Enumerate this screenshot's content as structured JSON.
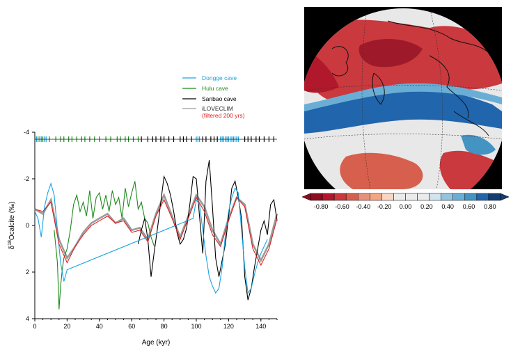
{
  "chart_data": [
    {
      "type": "line",
      "title": "",
      "xlabel": "Age (kyr)",
      "ylabel": "δ18Ocalcite (‰)",
      "ylabel_main": "δ",
      "ylabel_sup": "18",
      "ylabel_rest": "Ocalcite (‰)",
      "xlim": [
        0,
        150
      ],
      "ylim": [
        4,
        -4
      ],
      "y_inverted": true,
      "grid": false,
      "legend_placement": "top-right",
      "x_ticks": [
        "0",
        "20",
        "40",
        "60",
        "80",
        "100",
        "120",
        "140"
      ],
      "y_ticks": [
        "-4",
        "-2",
        "0",
        "2",
        "4"
      ],
      "series": [
        {
          "name": "Dongge cave",
          "color": "#1aa3e0",
          "x": [
            0,
            2,
            4,
            6,
            8,
            10,
            12,
            14,
            16,
            18,
            20,
            98,
            100,
            102,
            104,
            106,
            108,
            110,
            112,
            114,
            116,
            118,
            120,
            122,
            124,
            126,
            128,
            130,
            132,
            134,
            136,
            138,
            140,
            142,
            144
          ],
          "y": [
            -0.6,
            -0.3,
            0.5,
            -0.8,
            -1.4,
            -1.8,
            -1.3,
            0.2,
            1.6,
            2.4,
            1.9,
            -0.3,
            -1.1,
            -0.9,
            0.2,
            1.3,
            2.2,
            2.6,
            2.9,
            2.7,
            1.8,
            0.4,
            -0.6,
            -1.2,
            -1.6,
            -1.4,
            0.2,
            1.8,
            2.9,
            2.7,
            2.1,
            1.6,
            1.2,
            0.9,
            0.6
          ]
        },
        {
          "name": "Hulu cave",
          "color": "#1b8a1b",
          "x": [
            12,
            14,
            15,
            16,
            17,
            18,
            20,
            22,
            24,
            26,
            28,
            30,
            32,
            34,
            36,
            38,
            40,
            42,
            44,
            46,
            48,
            50,
            52,
            54,
            56,
            58,
            60,
            62,
            64,
            66,
            68,
            70,
            72,
            74
          ],
          "y": [
            0.2,
            1.6,
            3.6,
            2.6,
            1.9,
            1.4,
            1.0,
            0.2,
            -0.9,
            -1.3,
            -0.6,
            -1.0,
            -0.4,
            -1.5,
            -0.3,
            -1.2,
            -1.4,
            -0.7,
            -1.3,
            -0.6,
            -1.5,
            -0.9,
            -1.2,
            -0.3,
            -1.6,
            -0.8,
            -1.4,
            -1.9,
            -0.7,
            -1.0,
            -0.3,
            -0.1,
            0.5,
            0.9
          ]
        },
        {
          "name": "Sanbao cave",
          "color": "#000000",
          "x": [
            64,
            66,
            68,
            70,
            72,
            74,
            76,
            78,
            80,
            82,
            84,
            86,
            88,
            90,
            92,
            94,
            96,
            98,
            100,
            102,
            104,
            106,
            108,
            110,
            112,
            114,
            116,
            118,
            120,
            122,
            124,
            126,
            128,
            130,
            132,
            134,
            136,
            138,
            140,
            142,
            144,
            146,
            148,
            150
          ],
          "y": [
            0.8,
            0.2,
            -0.3,
            0.6,
            2.2,
            1.1,
            0.1,
            -1.0,
            -2.1,
            -1.8,
            -1.3,
            -0.6,
            0.3,
            0.8,
            0.6,
            0.1,
            -0.9,
            -2.1,
            -2.0,
            -0.4,
            1.2,
            -1.9,
            -2.8,
            -0.8,
            1.4,
            2.2,
            1.5,
            0.8,
            -0.4,
            -1.6,
            -1.9,
            -1.2,
            -0.3,
            2.2,
            3.2,
            2.7,
            1.8,
            1.0,
            0.2,
            -0.2,
            0.4,
            -0.9,
            -1.1,
            -0.2
          ]
        },
        {
          "name": "iLOVECLIM",
          "name_note": "(filtered 200 yrs)",
          "color": "#9a9a9a",
          "x": [
            0,
            5,
            10,
            15,
            20,
            25,
            30,
            35,
            40,
            45,
            50,
            55,
            60,
            65,
            70,
            75,
            80,
            85,
            90,
            95,
            100,
            105,
            110,
            115,
            120,
            125,
            130,
            135,
            140,
            145,
            150
          ],
          "y": [
            -0.7,
            -0.5,
            -1.1,
            0.6,
            1.4,
            0.9,
            0.3,
            -0.1,
            -0.3,
            -0.5,
            -0.1,
            -0.3,
            0.2,
            0.1,
            0.6,
            -0.5,
            -1.3,
            -0.4,
            0.5,
            -0.4,
            -1.3,
            -0.8,
            0.2,
            0.8,
            -0.3,
            -1.2,
            -0.9,
            0.8,
            1.5,
            0.8,
            -0.5
          ]
        },
        {
          "name": "iLOVECLIM filtered 200 yrs",
          "color": "#e02020",
          "x": [
            0,
            5,
            10,
            15,
            20,
            25,
            30,
            35,
            40,
            45,
            50,
            55,
            60,
            65,
            70,
            75,
            80,
            85,
            90,
            95,
            100,
            105,
            110,
            115,
            120,
            125,
            130,
            135,
            140,
            145,
            150
          ],
          "y": [
            -0.7,
            -0.6,
            -1.0,
            0.8,
            1.6,
            0.9,
            0.4,
            0.0,
            -0.2,
            -0.4,
            -0.1,
            -0.2,
            0.3,
            0.2,
            0.7,
            -0.4,
            -1.1,
            -0.3,
            0.6,
            -0.3,
            -1.2,
            -0.6,
            0.4,
            0.9,
            -0.2,
            -1.2,
            -0.8,
            1.0,
            1.7,
            1.0,
            -0.3
          ]
        }
      ],
      "dating_ticks": {
        "y": -3.7,
        "green_x": [
          2,
          5,
          9,
          13,
          16,
          18,
          21,
          23,
          26,
          29,
          31,
          34,
          37,
          40,
          44,
          47,
          51,
          53,
          56,
          58,
          61,
          64
        ],
        "black_x": [
          66,
          70,
          73,
          75,
          78,
          80,
          83,
          86,
          90,
          92,
          94,
          97,
          104,
          106,
          109,
          111,
          113,
          130,
          132,
          134,
          137,
          139,
          142,
          145,
          148
        ],
        "blue_x": [
          1,
          3,
          4,
          6,
          7,
          100,
          101,
          102,
          115,
          116,
          117,
          118,
          119,
          120,
          121,
          122,
          123,
          124,
          125,
          126
        ]
      }
    },
    {
      "type": "heatmap",
      "title": "",
      "description_colorbar_ticks": [
        "-0.80",
        "-0.60",
        "-0.40",
        "-0.20",
        "0.00",
        "0.20",
        "0.40",
        "0.60",
        "0.80"
      ],
      "colorbar_colors": [
        "#8e0c1f",
        "#b2182b",
        "#c9393e",
        "#d6604d",
        "#e8907a",
        "#f4a582",
        "#fbd5c2",
        "#ebebeb",
        "#ebebeb",
        "#ebebeb",
        "#d1e5f0",
        "#92c5de",
        "#6aaed6",
        "#4393c3",
        "#2166ac",
        "#143d73"
      ],
      "range": [
        -0.9,
        0.9
      ]
    }
  ]
}
